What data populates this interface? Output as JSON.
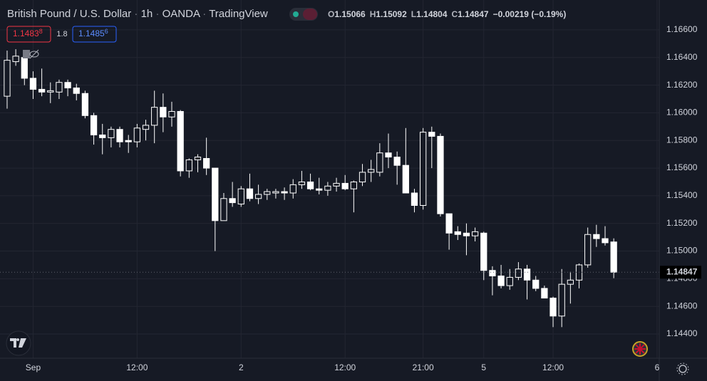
{
  "header": {
    "symbol": "British Pound / U.S. Dollar",
    "interval": "1h",
    "exchange": "OANDA",
    "source": "TradingView",
    "ohlc": [
      {
        "label": "O",
        "value": 1.15066
      },
      {
        "label": "H",
        "value": 1.15092
      },
      {
        "label": "L",
        "value": 1.14804
      },
      {
        "label": "C",
        "value": 1.14847
      }
    ],
    "change": "−0.00219 (−0.19%)"
  },
  "trade": {
    "sell": {
      "main": "1.1483",
      "pip": "8"
    },
    "spread": "1.8",
    "buy": {
      "main": "1.1485",
      "pip": "6"
    }
  },
  "chart_data": {
    "type": "candlestick",
    "open": [
      1.1612,
      1.1637,
      1.164,
      1.1625,
      1.1617,
      1.1615,
      1.1615,
      1.1622,
      1.1618,
      1.1614,
      1.1598,
      1.1584,
      1.1582,
      1.1588,
      1.158,
      1.1579,
      1.1588,
      1.1591,
      1.1604,
      1.1597,
      1.1601,
      1.1558,
      1.1566,
      1.1567,
      1.156,
      1.1522,
      1.1538,
      1.1534,
      1.1545,
      1.1538,
      1.1541,
      1.1542,
      1.1543,
      1.1542,
      1.1548,
      1.155,
      1.1545,
      1.1544,
      1.1547,
      1.1549,
      1.1545,
      1.155,
      1.1557,
      1.1557,
      1.1571,
      1.1568,
      1.1562,
      1.1542,
      1.1533,
      1.1586,
      1.1583,
      1.1527,
      1.1514,
      1.1513,
      1.1511,
      1.1513,
      1.1486,
      1.1482,
      1.1475,
      1.1481,
      1.1487,
      1.1479,
      1.1473,
      1.1466,
      1.1453,
      1.1476,
      1.1479,
      1.149,
      1.1512,
      1.1509,
      1.15066
    ],
    "high": [
      1.1645,
      1.1646,
      1.1644,
      1.163,
      1.1632,
      1.1622,
      1.1624,
      1.1624,
      1.1621,
      1.1616,
      1.16,
      1.1592,
      1.159,
      1.159,
      1.1584,
      1.1592,
      1.1595,
      1.1616,
      1.1614,
      1.1608,
      1.1602,
      1.1567,
      1.157,
      1.1582,
      1.156,
      1.1542,
      1.155,
      1.1547,
      1.1556,
      1.1548,
      1.1545,
      1.1545,
      1.1546,
      1.1552,
      1.1558,
      1.1556,
      1.1553,
      1.155,
      1.1553,
      1.1555,
      1.1551,
      1.1563,
      1.1566,
      1.1578,
      1.1585,
      1.1572,
      1.1589,
      1.1545,
      1.1589,
      1.159,
      1.1585,
      1.1527,
      1.1518,
      1.152,
      1.1517,
      1.1514,
      1.1489,
      1.149,
      1.1487,
      1.1492,
      1.149,
      1.1482,
      1.1475,
      1.1467,
      1.1487,
      1.1485,
      1.1491,
      1.1517,
      1.1519,
      1.1518,
      1.15092
    ],
    "low": [
      1.1603,
      1.1634,
      1.162,
      1.161,
      1.1612,
      1.1607,
      1.161,
      1.1612,
      1.1609,
      1.1596,
      1.1577,
      1.157,
      1.1575,
      1.1575,
      1.1571,
      1.1575,
      1.158,
      1.1578,
      1.1586,
      1.159,
      1.1554,
      1.1553,
      1.1557,
      1.1555,
      1.15,
      1.1522,
      1.1532,
      1.1532,
      1.1536,
      1.1534,
      1.1537,
      1.1538,
      1.1537,
      1.1538,
      1.1545,
      1.1544,
      1.1541,
      1.154,
      1.1543,
      1.1544,
      1.1528,
      1.1547,
      1.155,
      1.1554,
      1.156,
      1.1548,
      1.1543,
      1.1528,
      1.153,
      1.156,
      1.1525,
      1.1501,
      1.1508,
      1.1497,
      1.1507,
      1.1479,
      1.1468,
      1.1473,
      1.1472,
      1.1479,
      1.1465,
      1.1471,
      1.1466,
      1.1445,
      1.1445,
      1.1462,
      1.1473,
      1.1488,
      1.1503,
      1.1504,
      1.14804
    ],
    "close": [
      1.1638,
      1.1641,
      1.1625,
      1.1617,
      1.1615,
      1.1616,
      1.1622,
      1.1618,
      1.1614,
      1.1598,
      1.1584,
      1.1582,
      1.1588,
      1.1579,
      1.1579,
      1.1589,
      1.1591,
      1.1604,
      1.1597,
      1.1601,
      1.1558,
      1.1566,
      1.1568,
      1.156,
      1.1522,
      1.1538,
      1.1535,
      1.1545,
      1.1538,
      1.1541,
      1.1543,
      1.1543,
      1.1542,
      1.1548,
      1.155,
      1.1545,
      1.1544,
      1.1547,
      1.1549,
      1.1545,
      1.155,
      1.1557,
      1.1559,
      1.1571,
      1.1568,
      1.1562,
      1.1542,
      1.1533,
      1.1586,
      1.1583,
      1.1527,
      1.1513,
      1.1512,
      1.1511,
      1.1514,
      1.1486,
      1.1482,
      1.1475,
      1.1481,
      1.1487,
      1.1479,
      1.1473,
      1.1466,
      1.1453,
      1.1476,
      1.1479,
      1.149,
      1.1512,
      1.1509,
      1.1506,
      1.14847
    ],
    "up_color": "#161a25",
    "down_color": "#ffffff",
    "border_color": "#ffffff",
    "xlim": [
      -0.82,
      75.25
    ],
    "xticks": [
      {
        "value": 3,
        "label": "Sep"
      },
      {
        "value": 15,
        "label": "12:00"
      },
      {
        "value": 27,
        "label": "2"
      },
      {
        "value": 39,
        "label": "12:00"
      },
      {
        "value": 48,
        "label": "21:00"
      },
      {
        "value": 55,
        "label": "5"
      },
      {
        "value": 63,
        "label": "12:00"
      },
      {
        "value": 75,
        "label": "6"
      }
    ],
    "ylim": [
      1.14225,
      1.16816
    ],
    "yticks": [
      {
        "value": 1.144,
        "label": "1.14400"
      },
      {
        "value": 1.146,
        "label": "1.14600"
      },
      {
        "value": 1.148,
        "label": "1.14800"
      },
      {
        "value": 1.15,
        "label": "1.15000"
      },
      {
        "value": 1.152,
        "label": "1.15200"
      },
      {
        "value": 1.154,
        "label": "1.15400"
      },
      {
        "value": 1.156,
        "label": "1.15600"
      },
      {
        "value": 1.158,
        "label": "1.15800"
      },
      {
        "value": 1.16,
        "label": "1.16000"
      },
      {
        "value": 1.162,
        "label": "1.16200"
      },
      {
        "value": 1.164,
        "label": "1.16400"
      },
      {
        "value": 1.166,
        "label": "1.16600"
      }
    ],
    "last_price": 1.14847,
    "grid": true
  }
}
